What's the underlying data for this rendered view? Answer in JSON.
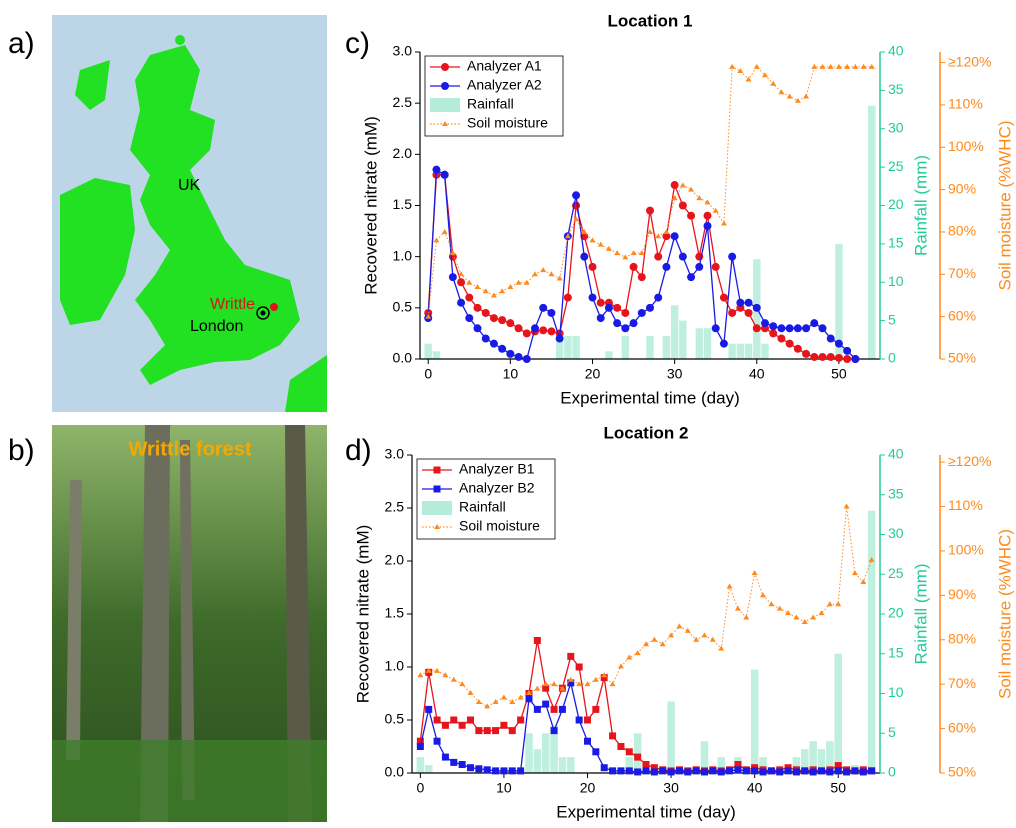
{
  "panel_labels": [
    "a)",
    "b)",
    "c)",
    "d)"
  ],
  "map": {
    "labels": [
      "UK",
      "Writtle",
      "London"
    ]
  },
  "photo": {
    "caption": "Writtle forest"
  },
  "chart_data": [
    {
      "type": "line",
      "title": "Location 1",
      "xlabel": "Experimental time (day)",
      "ylabel": "Recovered nitrate (mM)",
      "y2label": "Rainfall (mm)",
      "y3label": "Soil moisture (%WHC)",
      "legend": "upper left",
      "x": [
        0,
        1,
        2,
        3,
        4,
        5,
        6,
        7,
        8,
        9,
        10,
        11,
        12,
        13,
        14,
        15,
        16,
        17,
        18,
        19,
        20,
        21,
        22,
        23,
        24,
        25,
        26,
        27,
        28,
        29,
        30,
        31,
        32,
        33,
        34,
        35,
        36,
        37,
        38,
        39,
        40,
        41,
        42,
        43,
        44,
        45,
        46,
        47,
        48,
        49,
        50,
        51,
        52,
        53,
        54
      ],
      "xlim": [
        -1,
        55
      ],
      "xticks": [
        0,
        10,
        20,
        30,
        40,
        50
      ],
      "ylim": [
        0,
        3
      ],
      "yticks": [
        {
          "value": 0,
          "label": "0.0"
        },
        {
          "value": 0.5,
          "label": "0.5"
        },
        {
          "value": 1,
          "label": "1.0"
        },
        {
          "value": 1.5,
          "label": "1.5"
        },
        {
          "value": 2,
          "label": "2.0"
        },
        {
          "value": 2.5,
          "label": "2.5"
        },
        {
          "value": 3,
          "label": "3.0"
        }
      ],
      "y2lim": [
        0,
        40
      ],
      "y2ticks": [
        0,
        5,
        10,
        15,
        20,
        25,
        30,
        35,
        40
      ],
      "y3lim": [
        50,
        122.5
      ],
      "y3ticks": [
        {
          "value": 50,
          "label": "50%"
        },
        {
          "value": 60,
          "label": "60%"
        },
        {
          "value": 70,
          "label": "70%"
        },
        {
          "value": 80,
          "label": "80%"
        },
        {
          "value": 90,
          "label": "90%"
        },
        {
          "value": 100,
          "label": "100%"
        },
        {
          "value": 110,
          "label": "110%"
        },
        {
          "value": 120,
          "label": "≥120%"
        }
      ],
      "series": [
        {
          "name": "Analyzer A1",
          "color": "#e8141c",
          "marker": "circle",
          "kind": "line",
          "values": [
            0.45,
            1.8,
            1.8,
            1.0,
            0.75,
            0.6,
            0.5,
            0.45,
            0.4,
            0.38,
            0.35,
            0.3,
            0.25,
            0.27,
            0.28,
            0.27,
            0.25,
            0.6,
            1.5,
            1.2,
            0.9,
            0.55,
            0.55,
            0.5,
            0.45,
            0.9,
            0.8,
            1.45,
            1.0,
            1.2,
            1.7,
            1.5,
            1.4,
            1.0,
            1.4,
            0.9,
            0.6,
            0.45,
            0.5,
            0.45,
            0.3,
            0.3,
            0.25,
            0.2,
            0.15,
            0.1,
            0.05,
            0.02,
            0.02,
            0.02,
            0.01,
            0,
            0,
            null,
            null
          ]
        },
        {
          "name": "Analyzer A2",
          "color": "#1a1ae6",
          "marker": "circle",
          "kind": "line",
          "values": [
            0.4,
            1.85,
            1.8,
            0.8,
            0.55,
            0.4,
            0.3,
            0.2,
            0.15,
            0.1,
            0.05,
            0.02,
            0,
            0.3,
            0.5,
            0.45,
            0.2,
            1.2,
            1.6,
            1.0,
            0.6,
            0.4,
            0.5,
            0.35,
            0.3,
            0.35,
            0.45,
            0.5,
            0.6,
            0.9,
            1.2,
            1.0,
            0.8,
            0.9,
            1.3,
            0.3,
            0.15,
            1.0,
            0.55,
            0.55,
            0.5,
            0.35,
            0.32,
            0.3,
            0.3,
            0.3,
            0.3,
            0.35,
            0.3,
            0.2,
            0.15,
            0.08,
            0,
            null,
            null
          ]
        },
        {
          "name": "Rainfall",
          "color": "#b4ecd9",
          "kind": "bar",
          "axis": "y2",
          "values": [
            2,
            1,
            0,
            0,
            0,
            0,
            0,
            0,
            0,
            0,
            0,
            0,
            0,
            0,
            0,
            0,
            3,
            3,
            3,
            0,
            0,
            0,
            1,
            0,
            3,
            0,
            0,
            3,
            0,
            3,
            7,
            5,
            0,
            4,
            4,
            0,
            0,
            2,
            2,
            2,
            13,
            2,
            0,
            0,
            0,
            0,
            0,
            0,
            0,
            0,
            15,
            0,
            0,
            0,
            33
          ]
        },
        {
          "name": "Soil moisture",
          "color": "#ff8a1c",
          "marker": "triangle",
          "kind": "dotted",
          "axis": "y3",
          "values": [
            60,
            78,
            80,
            75,
            70,
            68,
            67,
            66,
            65,
            66,
            67,
            68,
            68,
            70,
            71,
            70,
            69,
            79,
            83,
            80,
            78,
            77,
            76,
            75,
            74,
            75,
            75,
            80,
            79,
            80,
            88,
            91,
            90,
            88,
            87,
            85,
            82,
            119,
            118,
            116,
            119,
            117,
            115,
            113,
            112,
            111,
            112,
            119,
            119,
            119,
            119,
            119,
            119,
            119,
            119
          ]
        }
      ]
    },
    {
      "type": "line",
      "title": "Location 2",
      "xlabel": "Experimental time (day)",
      "ylabel": "Recovered nitrate (mM)",
      "y2label": "Rainfall (mm)",
      "y3label": "Soil moisture (%WHC)",
      "legend": "upper left",
      "x": [
        0,
        1,
        2,
        3,
        4,
        5,
        6,
        7,
        8,
        9,
        10,
        11,
        12,
        13,
        14,
        15,
        16,
        17,
        18,
        19,
        20,
        21,
        22,
        23,
        24,
        25,
        26,
        27,
        28,
        29,
        30,
        31,
        32,
        33,
        34,
        35,
        36,
        37,
        38,
        39,
        40,
        41,
        42,
        43,
        44,
        45,
        46,
        47,
        48,
        49,
        50,
        51,
        52,
        53,
        54
      ],
      "xlim": [
        -1,
        55
      ],
      "xticks": [
        0,
        10,
        20,
        30,
        40,
        50
      ],
      "ylim": [
        0,
        3
      ],
      "yticks": [
        {
          "value": 0,
          "label": "0.0"
        },
        {
          "value": 0.5,
          "label": "0.5"
        },
        {
          "value": 1,
          "label": "1.0"
        },
        {
          "value": 1.5,
          "label": "1.5"
        },
        {
          "value": 2,
          "label": "2.0"
        },
        {
          "value": 2.5,
          "label": "2.5"
        },
        {
          "value": 3,
          "label": "3.0"
        }
      ],
      "y2lim": [
        0,
        40
      ],
      "y2ticks": [
        0,
        5,
        10,
        15,
        20,
        25,
        30,
        35,
        40
      ],
      "y3lim": [
        50,
        121.6
      ],
      "y3ticks": [
        {
          "value": 50,
          "label": "50%"
        },
        {
          "value": 60,
          "label": "60%"
        },
        {
          "value": 70,
          "label": "70%"
        },
        {
          "value": 80,
          "label": "80%"
        },
        {
          "value": 90,
          "label": "90%"
        },
        {
          "value": 100,
          "label": "100%"
        },
        {
          "value": 110,
          "label": "110%"
        },
        {
          "value": 120,
          "label": "≥120%"
        }
      ],
      "series": [
        {
          "name": "Analyzer B1",
          "color": "#e8141c",
          "marker": "square",
          "kind": "line",
          "values": [
            0.3,
            0.95,
            0.5,
            0.45,
            0.5,
            0.45,
            0.5,
            0.4,
            0.4,
            0.4,
            0.45,
            0.4,
            0.5,
            0.75,
            1.25,
            0.8,
            0.6,
            0.8,
            1.1,
            1.0,
            0.5,
            0.6,
            0.9,
            0.35,
            0.25,
            0.2,
            0.15,
            0.08,
            0.05,
            0.03,
            0.02,
            0.03,
            0.02,
            0.03,
            0.02,
            0.03,
            0.02,
            0.03,
            0.08,
            0.03,
            0.05,
            0.03,
            0.02,
            0.03,
            0.05,
            0.03,
            0.02,
            0.03,
            0.02,
            0.03,
            0.07,
            0.03,
            0.02,
            0.03,
            0.02
          ]
        },
        {
          "name": "Analyzer B2",
          "color": "#1a1ae6",
          "marker": "square",
          "kind": "line",
          "values": [
            0.25,
            0.6,
            0.3,
            0.15,
            0.1,
            0.08,
            0.05,
            0.04,
            0.03,
            0.02,
            0.02,
            0.02,
            0.02,
            0.7,
            0.6,
            0.65,
            0.4,
            0.6,
            0.85,
            0.5,
            0.3,
            0.2,
            0.05,
            0.02,
            0.02,
            0.02,
            0.01,
            0.02,
            0.01,
            0.02,
            0.01,
            0.02,
            0.01,
            0.02,
            0.01,
            0.02,
            0.01,
            0.02,
            0.03,
            0.02,
            0.02,
            0.01,
            0.02,
            0.01,
            0.02,
            0.01,
            0.02,
            0.01,
            0.02,
            0.01,
            0.02,
            0.01,
            0.02,
            0.01,
            0.02
          ]
        },
        {
          "name": "Rainfall",
          "color": "#b4ecd9",
          "kind": "bar",
          "axis": "y2",
          "values": [
            2,
            1,
            0,
            0,
            0,
            0,
            0,
            0,
            0,
            0,
            0,
            0,
            0,
            5,
            3,
            5,
            6,
            2,
            2,
            0,
            0,
            0,
            0,
            0,
            0,
            2,
            5,
            0,
            0,
            0,
            9,
            0,
            0,
            0,
            4,
            0,
            2,
            0,
            2,
            0,
            13,
            2,
            0,
            0,
            0,
            2,
            3,
            4,
            3,
            4,
            15,
            0,
            1,
            0,
            33
          ]
        },
        {
          "name": "Soil moisture",
          "color": "#ff8a1c",
          "marker": "triangle",
          "kind": "dotted",
          "axis": "y3",
          "values": [
            72,
            73,
            73,
            72,
            71,
            70,
            68,
            66,
            65,
            66,
            67,
            66,
            67,
            68,
            69,
            70,
            70,
            69,
            71,
            70,
            70,
            71,
            72,
            70,
            74,
            76,
            77,
            79,
            80,
            79,
            81,
            83,
            82,
            80,
            81,
            80,
            78,
            92,
            87,
            85,
            95,
            90,
            88,
            87,
            86,
            85,
            84,
            85,
            86,
            88,
            88,
            110,
            95,
            93,
            98
          ]
        }
      ]
    }
  ]
}
